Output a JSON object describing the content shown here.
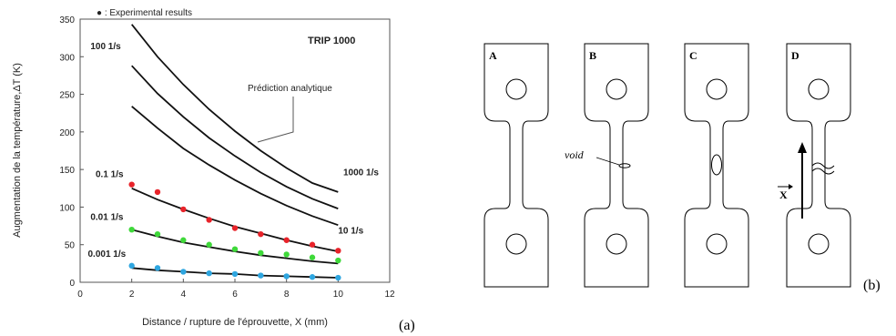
{
  "chart_data": {
    "type": "scatter",
    "title": "TRIP 1000",
    "xlabel": "Distance / rupture de l'éprouvette, X (mm)",
    "ylabel": "Augmentation de la température,ΔT (K)",
    "xlim": [
      0,
      12
    ],
    "ylim": [
      0,
      350
    ],
    "x_ticks": [
      "0",
      "2",
      "4",
      "6",
      "8",
      "10",
      "12"
    ],
    "y_ticks": [
      "0",
      "50",
      "100",
      "150",
      "200",
      "250",
      "300",
      "350"
    ],
    "legend": "● : Experimental results",
    "annotation": "Prédiction analytique",
    "panel_label": "(a)",
    "curves": [
      {
        "name": "1000 1/s",
        "x": [
          2,
          3,
          4,
          5,
          6,
          7,
          8,
          9,
          10
        ],
        "y": [
          343,
          300,
          263,
          230,
          201,
          175,
          152,
          132,
          120
        ]
      },
      {
        "name": "100 1/s",
        "x": [
          2,
          3,
          4,
          5,
          6,
          7,
          8,
          9,
          10
        ],
        "y": [
          288,
          251,
          220,
          192,
          168,
          146,
          127,
          111,
          98
        ]
      },
      {
        "name": "10 1/s",
        "x": [
          2,
          3,
          4,
          5,
          6,
          7,
          8,
          9,
          10
        ],
        "y": [
          234,
          205,
          178,
          156,
          136,
          118,
          102,
          88,
          76
        ]
      },
      {
        "name": "0.1 1/s",
        "x": [
          2,
          3,
          4,
          5,
          6,
          7,
          8,
          9,
          10
        ],
        "y": [
          125,
          110,
          97,
          85,
          74,
          65,
          56,
          48,
          41
        ]
      },
      {
        "name": "0.01 1/s",
        "x": [
          2,
          3,
          4,
          5,
          6,
          7,
          8,
          9,
          10
        ],
        "y": [
          70,
          61,
          53,
          47,
          41,
          36,
          32,
          28,
          25
        ]
      },
      {
        "name": "0.001 1/s",
        "x": [
          2,
          3,
          4,
          5,
          6,
          7,
          8,
          9,
          10
        ],
        "y": [
          19,
          16,
          14,
          12,
          11,
          9,
          8,
          7,
          6
        ]
      }
    ],
    "curve_labels": [
      {
        "text": "100 1/s",
        "x": 0.4,
        "y": 310
      },
      {
        "text": "1000 1/s",
        "x": 10.2,
        "y": 142
      },
      {
        "text": "10 1/s",
        "x": 10.0,
        "y": 65
      },
      {
        "text": "0.1 1/s",
        "x": 0.6,
        "y": 140
      },
      {
        "text": "0.01 1/s",
        "x": 0.4,
        "y": 83
      },
      {
        "text": "0.001 1/s",
        "x": 0.3,
        "y": 34
      }
    ],
    "series": [
      {
        "name": "0.1 1/s",
        "color": "#e8232a",
        "x": [
          2,
          3,
          4,
          5,
          6,
          7,
          8,
          9,
          10
        ],
        "y": [
          130,
          120,
          97,
          83,
          72,
          64,
          56,
          50,
          42
        ]
      },
      {
        "name": "0.01 1/s",
        "color": "#3fd93a",
        "x": [
          2,
          3,
          4,
          5,
          6,
          7,
          8,
          9,
          10
        ],
        "y": [
          70,
          64,
          56,
          50,
          44,
          39,
          37,
          33,
          29
        ]
      },
      {
        "name": "0.001 1/s",
        "color": "#2ea6e0",
        "x": [
          2,
          3,
          4,
          5,
          6,
          7,
          8,
          9,
          10
        ],
        "y": [
          22,
          19,
          14,
          12,
          11,
          9,
          8,
          7,
          6
        ]
      }
    ]
  },
  "diagram": {
    "specimen_labels": [
      "A",
      "B",
      "C",
      "D"
    ],
    "void_label": "void",
    "axis_label": "X",
    "panel_label": "(b)"
  }
}
